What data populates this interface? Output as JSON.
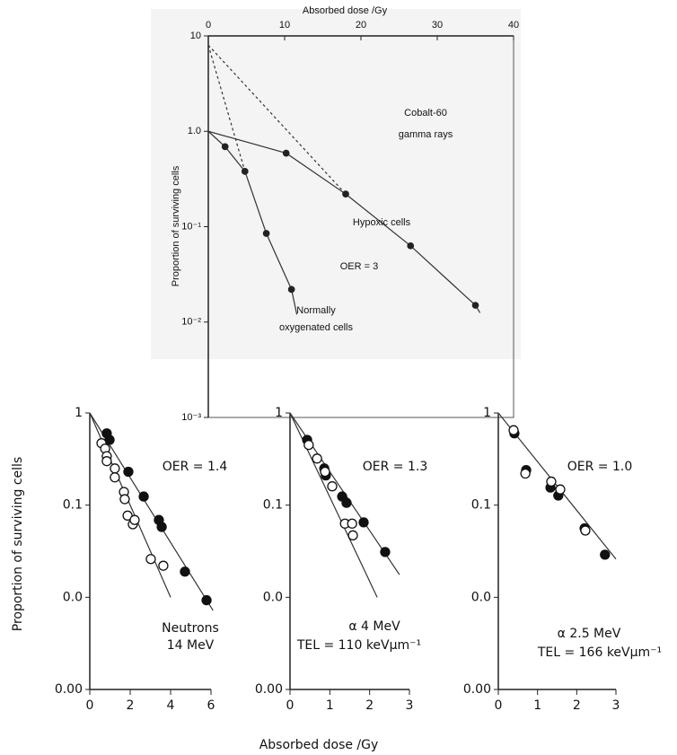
{
  "chart_data": [
    {
      "type": "scatter",
      "xlabel": "Absorbed dose /Gy",
      "ylabel": "Proportion of surviving cells",
      "x_axis_position": "top",
      "log_y": true,
      "xlim": [
        0,
        40
      ],
      "xticks": [
        0,
        10,
        20,
        30,
        40
      ],
      "ylim": [
        0.001,
        10
      ],
      "yticks": [
        10,
        {
          "value": 1,
          "label": "1.0"
        },
        {
          "value": 0.1,
          "label": "10⁻¹"
        },
        {
          "value": 0.01,
          "label": "10⁻²"
        },
        {
          "value": 0.001,
          "label": "10⁻³"
        }
      ],
      "annotations": [
        "Cobalt-60",
        "gamma rays",
        "Hypoxic cells",
        "OER = 3",
        "Normally",
        "oxygenated cells"
      ],
      "series": [
        {
          "marker": "filled",
          "color": "#222222",
          "x": [
            2.2,
            4.8,
            7.6,
            10.9
          ],
          "values": [
            0.69,
            0.38,
            0.085,
            0.022
          ]
        },
        {
          "marker": "filled",
          "color": "#222222",
          "x": [
            10.2,
            18,
            26.5,
            35
          ],
          "values": [
            0.59,
            0.22,
            0.063,
            0.015
          ]
        }
      ],
      "lines": [
        {
          "style": "solid",
          "x": [
            0,
            2.2,
            4.8,
            7.6,
            10.9,
            11.6
          ],
          "values": [
            1,
            0.69,
            0.38,
            0.085,
            0.022,
            0.012
          ]
        },
        {
          "style": "solid",
          "x": [
            0,
            10.2,
            18,
            26.5,
            35,
            35.6
          ],
          "values": [
            1,
            0.59,
            0.22,
            0.063,
            0.015,
            0.0125
          ]
        },
        {
          "style": "dashed",
          "x": [
            0,
            4.8
          ],
          "values": [
            8,
            0.38
          ]
        },
        {
          "style": "dashed",
          "x": [
            0,
            18
          ],
          "values": [
            8,
            0.22
          ]
        }
      ]
    },
    {
      "type": "scatter",
      "ylabel": "Proportion of surviving cells",
      "log_y": true,
      "xlim": [
        0,
        6
      ],
      "xticks": [
        0,
        2,
        4,
        6
      ],
      "ylim": [
        0.001,
        1
      ],
      "yticks": [
        1,
        0.1,
        {
          "value": 0.01,
          "label": "0.0"
        },
        {
          "value": 0.001,
          "label": "0.00"
        }
      ],
      "annotations": [
        "OER = 1.4",
        "Neutrons",
        "14 MeV"
      ],
      "series": [
        {
          "marker": "filled",
          "color": "#111111",
          "x": [
            0.84,
            0.98,
            1.91,
            2.67,
            3.42,
            3.56,
            4.71,
            5.78
          ],
          "values": [
            0.6,
            0.51,
            0.23,
            0.124,
            0.069,
            0.058,
            0.019,
            0.0093
          ]
        },
        {
          "marker": "open",
          "color": "#111111",
          "x": [
            0.58,
            0.76,
            0.84,
            0.84,
            1.24,
            1.24,
            1.69,
            1.73,
            1.87,
            2.13,
            2.22,
            3.02,
            3.64
          ],
          "values": [
            0.47,
            0.41,
            0.34,
            0.3,
            0.25,
            0.2,
            0.139,
            0.116,
            0.077,
            0.062,
            0.069,
            0.026,
            0.022
          ]
        }
      ],
      "lines": [
        {
          "style": "solid",
          "x": [
            0,
            6.1
          ],
          "values": [
            1,
            0.0072
          ]
        },
        {
          "style": "solid",
          "x": [
            0,
            4
          ],
          "values": [
            1,
            0.01
          ]
        }
      ]
    },
    {
      "type": "scatter",
      "xlabel": "Absorbed dose /Gy",
      "log_y": true,
      "xlim": [
        0,
        3
      ],
      "xticks": [
        0,
        1,
        2,
        3
      ],
      "ylim": [
        0.001,
        1
      ],
      "yticks": [
        1,
        0.1,
        {
          "value": 0.01,
          "label": "0.0"
        },
        {
          "value": 0.001,
          "label": "0.00"
        }
      ],
      "annotations": [
        "OER = 1.3",
        "α 4 MeV",
        "TEL = 110 keVμm⁻¹"
      ],
      "series": [
        {
          "marker": "filled",
          "color": "#111111",
          "x": [
            0.43,
            0.86,
            0.9,
            1.31,
            1.42,
            1.85,
            2.39
          ],
          "values": [
            0.51,
            0.25,
            0.21,
            0.124,
            0.106,
            0.065,
            0.031
          ]
        },
        {
          "marker": "open",
          "color": "#111111",
          "x": [
            0.47,
            0.68,
            0.88,
            1.06,
            1.38,
            1.56,
            1.58
          ],
          "values": [
            0.45,
            0.32,
            0.23,
            0.16,
            0.063,
            0.063,
            0.047
          ]
        }
      ],
      "lines": [
        {
          "style": "solid",
          "x": [
            0,
            2.75
          ],
          "values": [
            1,
            0.0176
          ]
        },
        {
          "style": "solid",
          "x": [
            0,
            2.19
          ],
          "values": [
            1,
            0.01
          ]
        }
      ]
    },
    {
      "type": "scatter",
      "log_y": true,
      "xlim": [
        0,
        3
      ],
      "xticks": [
        0,
        1,
        2,
        3
      ],
      "ylim": [
        0.001,
        1
      ],
      "yticks": [
        1,
        0.1,
        {
          "value": 0.01,
          "label": "0.0"
        },
        {
          "value": 0.001,
          "label": "0.00"
        }
      ],
      "annotations": [
        "OER = 1.0",
        "α 2.5 MeV",
        "TEL = 166 keVμm⁻¹"
      ],
      "series": [
        {
          "marker": "filled",
          "color": "#111111",
          "x": [
            0.41,
            0.71,
            1.33,
            1.53,
            2.2,
            2.72
          ],
          "values": [
            0.6,
            0.24,
            0.155,
            0.127,
            0.056,
            0.029
          ]
        },
        {
          "marker": "open",
          "color": "#111111",
          "x": [
            0.39,
            0.69,
            1.35,
            1.58,
            2.22
          ],
          "values": [
            0.65,
            0.22,
            0.18,
            0.148,
            0.053
          ]
        }
      ],
      "lines": [
        {
          "style": "solid",
          "x": [
            0,
            3
          ],
          "values": [
            1,
            0.026
          ]
        }
      ]
    }
  ]
}
